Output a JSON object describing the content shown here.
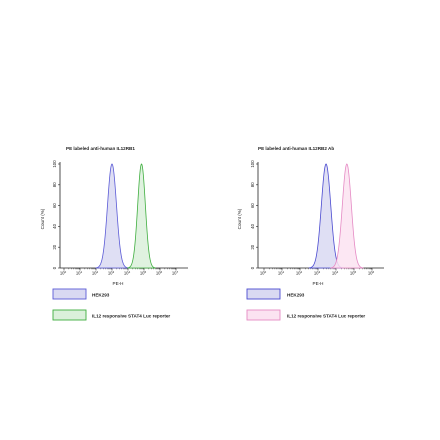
{
  "chart_data": [
    {
      "type": "area",
      "title": "PE labeled anti-human IL12RB1",
      "xlabel": "PE-H",
      "ylabel": "Count (%)",
      "x_scale": "log",
      "xlim": [
        0.5,
        10000000
      ],
      "ylim": [
        0,
        100
      ],
      "x_ticks": [
        {
          "base": "10",
          "exp": "0"
        },
        {
          "base": "10",
          "exp": "1"
        },
        {
          "base": "10",
          "exp": "2"
        },
        {
          "base": "10",
          "exp": "3"
        },
        {
          "base": "10",
          "exp": "4"
        },
        {
          "base": "10",
          "exp": "5"
        },
        {
          "base": "10",
          "exp": "6"
        },
        {
          "base": "10",
          "exp": "7"
        }
      ],
      "y_ticks": [
        "0",
        "20",
        "40",
        "60",
        "80",
        "100"
      ],
      "series": [
        {
          "name": "HEK293",
          "color": "#5b5bd6",
          "fill": "#d9d9f2",
          "peak_x": 1000,
          "peak_y": 100,
          "spread_decades": 0.28
        },
        {
          "name": "IL12 responsive STAT4 Luc reporter",
          "color": "#3fae3f",
          "fill": "#dbf0db",
          "peak_x": 70000,
          "peak_y": 100,
          "spread_decades": 0.24
        }
      ]
    },
    {
      "type": "area",
      "title": "PE labeled anti-human IL12RB2 Ab",
      "xlabel": "PE-H",
      "ylabel": "Count (%)",
      "x_scale": "log",
      "xlim": [
        0.5,
        10000000
      ],
      "ylim": [
        0,
        100
      ],
      "x_ticks": [
        {
          "base": "10",
          "exp": "0"
        },
        {
          "base": "10",
          "exp": "1"
        },
        {
          "base": "10",
          "exp": "2"
        },
        {
          "base": "10",
          "exp": "3"
        },
        {
          "base": "10",
          "exp": "4"
        },
        {
          "base": "10",
          "exp": "5"
        },
        {
          "base": "10",
          "exp": "6"
        }
      ],
      "y_ticks": [
        "0",
        "20",
        "40",
        "60",
        "80",
        "100"
      ],
      "series": [
        {
          "name": "HEK293",
          "color": "#4a4ad0",
          "fill": "#d9d9f2",
          "peak_x": 2800,
          "peak_y": 100,
          "spread_decades": 0.26
        },
        {
          "name": "IL12 responsive STAT4 Luc reporter",
          "color": "#e58ac4",
          "fill": "#fbe3f1",
          "peak_x": 40000,
          "peak_y": 100,
          "spread_decades": 0.25
        }
      ]
    }
  ]
}
